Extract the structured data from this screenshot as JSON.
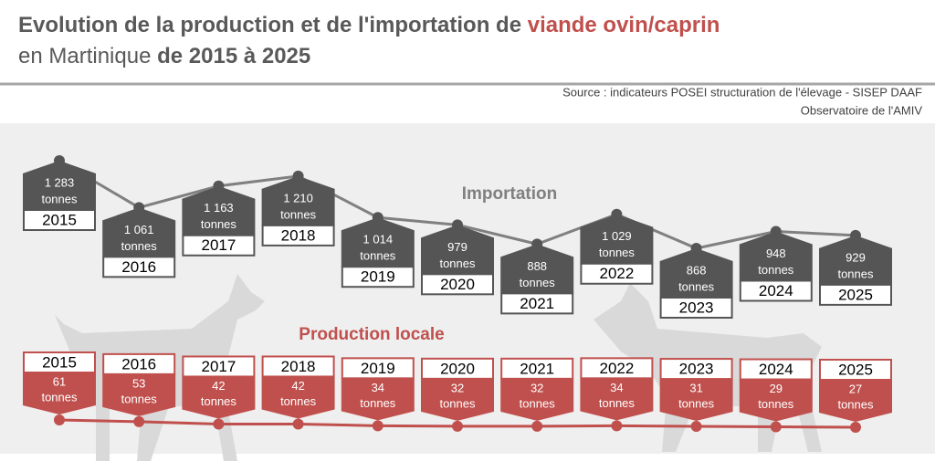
{
  "chart_data": {
    "type": "line",
    "title_parts": [
      "Evolution de la production et de l'importation de ",
      "viande ovin/caprin"
    ],
    "subtitle_parts": [
      "en Martinique ",
      "de 2015 à 2025"
    ],
    "source": [
      "Source : indicateurs POSEI structuration de l'élevage - SISEP DAAF",
      "Observatoire de l'AMIV"
    ],
    "unit": "tonnes",
    "categories": [
      "2015",
      "2016",
      "2017",
      "2018",
      "2019",
      "2020",
      "2021",
      "2022",
      "2023",
      "2024",
      "2025"
    ],
    "series": [
      {
        "name": "Importation",
        "color": "#555555",
        "values": [
          1283,
          1061,
          1163,
          1210,
          1014,
          979,
          888,
          1029,
          868,
          948,
          929
        ],
        "value_labels": [
          "1 283",
          "1 061",
          "1 163",
          "1 210",
          "1 014",
          "979",
          "888",
          "1 029",
          "868",
          "948",
          "929"
        ]
      },
      {
        "name": "Production locale",
        "color": "#c0504d",
        "values": [
          61,
          53,
          42,
          42,
          34,
          32,
          32,
          34,
          31,
          29,
          27
        ]
      }
    ]
  }
}
